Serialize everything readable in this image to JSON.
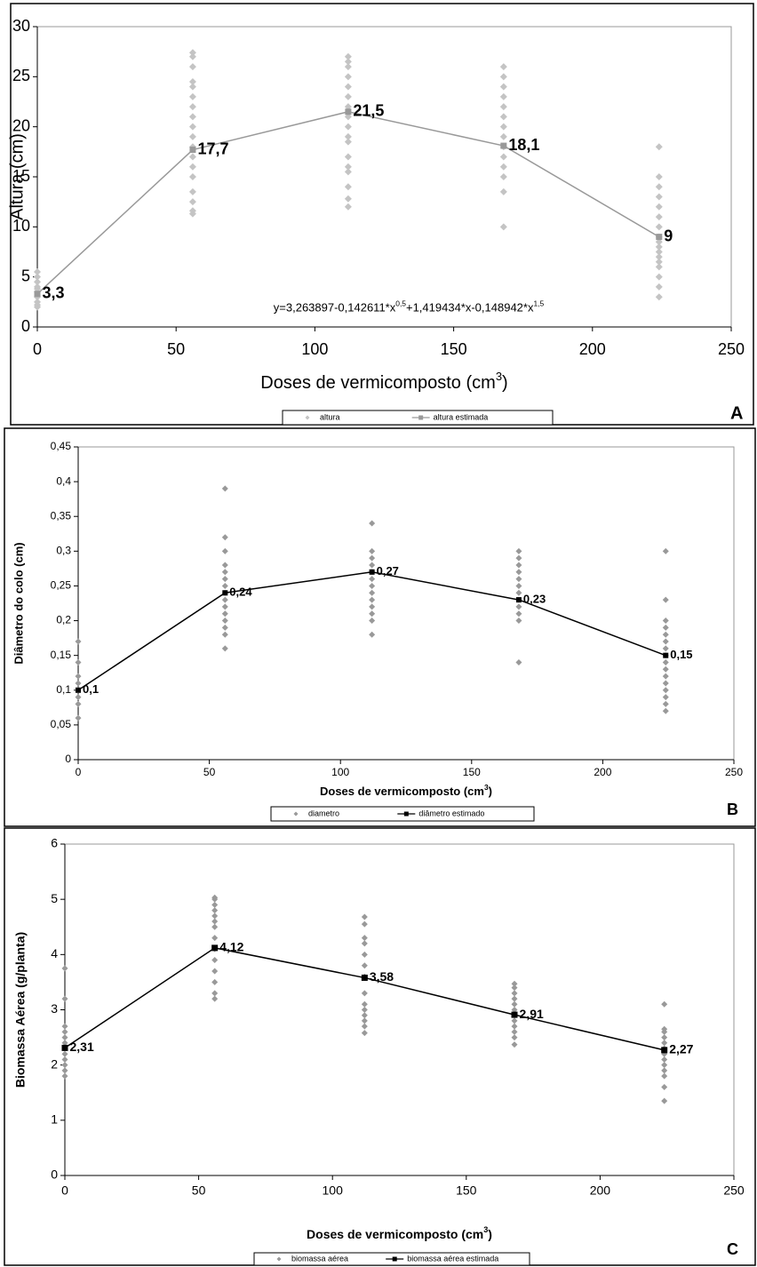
{
  "chart_data": [
    {
      "type": "scatter",
      "panel_label": "A",
      "ylabel": "Altura (cm)",
      "xlabel": [
        "Doses de vermicomposto (cm",
        "3",
        ")"
      ],
      "annotation": [
        "y=3,263897-0,142611*x",
        "0,5",
        "+1,419434*x-0,148942*x",
        "1,5"
      ],
      "xlim": [
        0,
        250
      ],
      "xticks": [
        0,
        50,
        100,
        150,
        200,
        250
      ],
      "ylim": [
        0,
        30
      ],
      "yticks": [
        0,
        5,
        10,
        15,
        20,
        25,
        30
      ],
      "series": [
        {
          "name": "altura",
          "type": "scatter",
          "color": "#c4c4c4",
          "x": [
            0,
            0,
            0,
            0,
            0,
            0,
            0,
            0,
            0,
            0,
            56,
            56,
            56,
            56,
            56,
            56,
            56,
            56,
            56,
            56,
            56,
            56,
            56,
            56,
            56,
            56,
            56,
            56,
            112,
            112,
            112,
            112,
            112,
            112,
            112,
            112,
            112,
            112,
            112,
            112,
            112,
            112,
            112,
            112,
            112,
            168,
            168,
            168,
            168,
            168,
            168,
            168,
            168,
            168,
            168,
            168,
            168,
            168,
            168,
            224,
            224,
            224,
            224,
            224,
            224,
            224,
            224,
            224,
            224,
            224,
            224,
            224,
            224,
            224,
            224,
            224
          ],
          "values": [
            2,
            2.5,
            3,
            3.5,
            4,
            4.5,
            5,
            5.5,
            2.2,
            3.8,
            11.3,
            11.6,
            12.5,
            13.5,
            15,
            16,
            17,
            18,
            19,
            20,
            21,
            22,
            23,
            24,
            24.5,
            26,
            27,
            27.4,
            12,
            12.8,
            14,
            15.5,
            16,
            17,
            18.5,
            19,
            20,
            21,
            22,
            23,
            24,
            25,
            26,
            26.5,
            27,
            10,
            13.5,
            15,
            16,
            17,
            18,
            19,
            20,
            21,
            22,
            23,
            24,
            25,
            26,
            3,
            4,
            5,
            6,
            6.5,
            7,
            7.5,
            8,
            8.5,
            9,
            10,
            11,
            12,
            13,
            14,
            15,
            18
          ]
        },
        {
          "name": "altura estimada",
          "type": "line",
          "color": "#999999",
          "x": [
            0,
            56,
            112,
            168,
            224
          ],
          "values": [
            3.3,
            17.7,
            21.5,
            18.1,
            9
          ],
          "value_labels": [
            "3,3",
            "17,7",
            "21,5",
            "18,1",
            "9"
          ]
        }
      ]
    },
    {
      "type": "scatter",
      "panel_label": "B",
      "ylabel": "Diâmetro do colo (cm)",
      "xlabel": [
        "Doses de vermicomposto (cm",
        "3",
        ")"
      ],
      "xlim": [
        0,
        250
      ],
      "xticks": [
        0,
        50,
        100,
        150,
        200,
        250
      ],
      "ylim": [
        0,
        0.45
      ],
      "yticks": [
        0,
        {
          "value": 0.05,
          "label": "0,05"
        },
        {
          "value": 0.1,
          "label": "0,1"
        },
        {
          "value": 0.15,
          "label": "0,15"
        },
        {
          "value": 0.2,
          "label": "0,2"
        },
        {
          "value": 0.25,
          "label": "0,25"
        },
        {
          "value": 0.3,
          "label": "0,3"
        },
        {
          "value": 0.35,
          "label": "0,35"
        },
        {
          "value": 0.4,
          "label": "0,4"
        },
        {
          "value": 0.45,
          "label": "0,45"
        }
      ],
      "series": [
        {
          "name": "diametro",
          "type": "scatter",
          "color": "#999999",
          "x": [
            0,
            0,
            0,
            0,
            0,
            0,
            0,
            0,
            56,
            56,
            56,
            56,
            56,
            56,
            56,
            56,
            56,
            56,
            56,
            56,
            56,
            56,
            56,
            112,
            112,
            112,
            112,
            112,
            112,
            112,
            112,
            112,
            112,
            112,
            112,
            112,
            168,
            168,
            168,
            168,
            168,
            168,
            168,
            168,
            168,
            168,
            168,
            168,
            224,
            224,
            224,
            224,
            224,
            224,
            224,
            224,
            224,
            224,
            224,
            224,
            224,
            224,
            224,
            224
          ],
          "values": [
            0.06,
            0.08,
            0.09,
            0.1,
            0.11,
            0.12,
            0.14,
            0.17,
            0.16,
            0.18,
            0.19,
            0.2,
            0.21,
            0.22,
            0.23,
            0.24,
            0.25,
            0.26,
            0.27,
            0.28,
            0.3,
            0.32,
            0.39,
            0.18,
            0.2,
            0.21,
            0.22,
            0.23,
            0.24,
            0.25,
            0.26,
            0.27,
            0.28,
            0.29,
            0.3,
            0.34,
            0.14,
            0.2,
            0.21,
            0.22,
            0.23,
            0.24,
            0.25,
            0.26,
            0.27,
            0.28,
            0.29,
            0.3,
            0.07,
            0.08,
            0.09,
            0.1,
            0.11,
            0.12,
            0.13,
            0.14,
            0.15,
            0.16,
            0.17,
            0.18,
            0.19,
            0.2,
            0.23,
            0.3
          ]
        },
        {
          "name": "diâmetro estimado",
          "type": "line",
          "color": "#000000",
          "x": [
            0,
            56,
            112,
            168,
            224
          ],
          "values": [
            0.1,
            0.24,
            0.27,
            0.23,
            0.15
          ],
          "value_labels": [
            "0,1",
            "0,24",
            "0,27",
            "0,23",
            "0,15"
          ]
        }
      ]
    },
    {
      "type": "scatter",
      "panel_label": "C",
      "ylabel": "Biomassa Aérea (g/planta)",
      "xlabel": [
        "Doses de vermicomposto (cm",
        "3",
        ")"
      ],
      "xlim": [
        0,
        250
      ],
      "xticks": [
        0,
        50,
        100,
        150,
        200,
        250
      ],
      "ylim": [
        0,
        6
      ],
      "yticks": [
        0,
        1,
        2,
        3,
        4,
        5,
        6
      ],
      "series": [
        {
          "name": "biomassa aérea",
          "type": "scatter",
          "color": "#999999",
          "x": [
            0,
            0,
            0,
            0,
            0,
            0,
            0,
            0,
            0,
            0,
            0,
            0,
            56,
            56,
            56,
            56,
            56,
            56,
            56,
            56,
            56,
            56,
            56,
            56,
            56,
            56,
            112,
            112,
            112,
            112,
            112,
            112,
            112,
            112,
            112,
            112,
            112,
            112,
            112,
            112,
            168,
            168,
            168,
            168,
            168,
            168,
            168,
            168,
            168,
            168,
            168,
            168,
            224,
            224,
            224,
            224,
            224,
            224,
            224,
            224,
            224,
            224,
            224,
            224,
            224
          ],
          "values": [
            1.8,
            1.9,
            2,
            2.1,
            2.2,
            2.3,
            2.4,
            2.5,
            2.6,
            2.7,
            3.2,
            3.75,
            3.2,
            3.3,
            3.5,
            3.7,
            3.9,
            4.1,
            4.3,
            4.5,
            4.6,
            4.7,
            4.8,
            4.9,
            5,
            5.03,
            2.58,
            2.7,
            2.8,
            2.9,
            3,
            3.1,
            3.3,
            3.6,
            3.8,
            4,
            4.2,
            4.3,
            4.55,
            4.68,
            2.37,
            2.5,
            2.6,
            2.7,
            2.8,
            2.9,
            3,
            3.1,
            3.2,
            3.3,
            3.4,
            3.47,
            1.35,
            1.6,
            1.8,
            1.9,
            2,
            2.1,
            2.2,
            2.3,
            2.4,
            2.5,
            2.6,
            2.65,
            3.1
          ]
        },
        {
          "name": "biomassa aérea estimada",
          "type": "line",
          "color": "#000000",
          "x": [
            0,
            56,
            112,
            168,
            224
          ],
          "values": [
            2.31,
            4.12,
            3.58,
            2.91,
            2.27
          ],
          "value_labels": [
            "2,31",
            "4,12",
            "3,58",
            "2,91",
            "2,27"
          ]
        }
      ]
    }
  ]
}
